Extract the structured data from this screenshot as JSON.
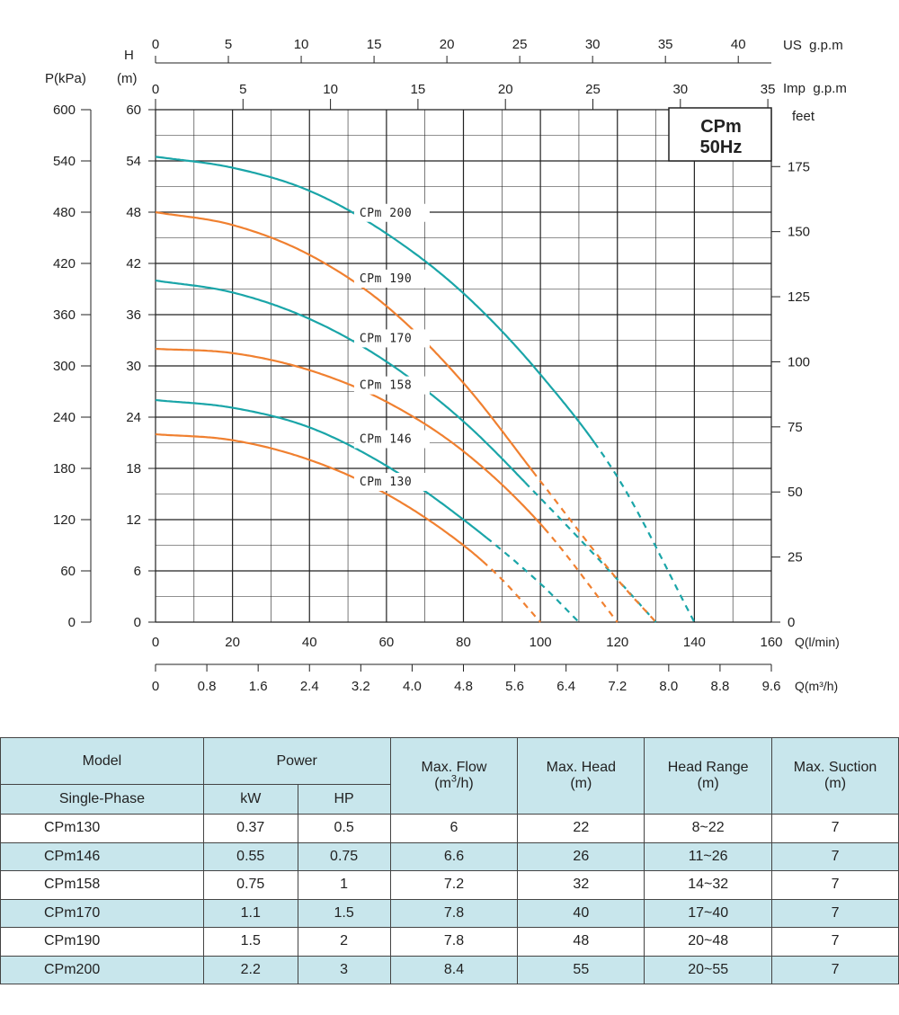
{
  "chart_data": {
    "type": "line",
    "title": "CPm",
    "subtitle": "50Hz",
    "x_axis": {
      "label": "Q(l/min)",
      "range": [
        0,
        160
      ],
      "ticks": [
        0,
        20,
        40,
        60,
        80,
        100,
        120,
        140,
        160
      ]
    },
    "x_axis_m3h": {
      "label": "Q(m³/h)",
      "range": [
        0,
        9.6
      ],
      "ticks": [
        "0",
        "0.8",
        "1.6",
        "2.4",
        "3.2",
        "4.0",
        "4.8",
        "5.6",
        "6.4",
        "7.2",
        "8.0",
        "8.8",
        "9.6"
      ]
    },
    "x_axis_us_gpm": {
      "label": "US  g.p.m",
      "range": [
        0,
        42.27
      ],
      "ticks": [
        0,
        5,
        10,
        15,
        20,
        25,
        30,
        35,
        40
      ]
    },
    "x_axis_imp_gpm": {
      "label": "Imp  g.p.m",
      "range": [
        0,
        35.2
      ],
      "ticks": [
        0,
        5,
        10,
        15,
        20,
        25,
        30,
        35
      ]
    },
    "y_axis_head": {
      "label_top": "H",
      "label_unit": "(m)",
      "range": [
        0,
        60
      ],
      "ticks": [
        0,
        6,
        12,
        18,
        24,
        30,
        36,
        42,
        48,
        54,
        60
      ]
    },
    "y_axis_pressure": {
      "label": "P(kPa)",
      "range": [
        0,
        600
      ],
      "ticks": [
        0,
        60,
        120,
        180,
        240,
        300,
        360,
        420,
        480,
        540,
        600
      ]
    },
    "y_axis_feet": {
      "label": "feet",
      "range": [
        0,
        196.85
      ],
      "ticks": [
        0,
        25,
        50,
        75,
        100,
        125,
        150,
        175
      ]
    },
    "grid": true,
    "series": [
      {
        "name": "CPm 130",
        "color": "#f08030",
        "x": [
          0,
          20,
          40,
          60,
          80,
          90,
          100
        ],
        "y": [
          22,
          21.3,
          19,
          15,
          9,
          5,
          0
        ],
        "dashed_from_x": 85,
        "label_x": 53,
        "label_y": 16
      },
      {
        "name": "CPm 146",
        "color": "#1aa5a8",
        "x": [
          0,
          20,
          40,
          60,
          80,
          100,
          110
        ],
        "y": [
          26,
          25.1,
          22.8,
          18.3,
          12,
          4.5,
          0
        ],
        "dashed_from_x": 86,
        "label_x": 53,
        "label_y": 21
      },
      {
        "name": "CPm 158",
        "color": "#f08030",
        "x": [
          0,
          20,
          40,
          60,
          80,
          100,
          120
        ],
        "y": [
          32,
          31.5,
          29.5,
          25.8,
          20,
          11.5,
          0
        ],
        "dashed_from_x": 101,
        "label_x": 53,
        "label_y": 27.3
      },
      {
        "name": "CPm 170",
        "color": "#1aa5a8",
        "x": [
          0,
          20,
          40,
          60,
          80,
          100,
          120,
          130
        ],
        "y": [
          40,
          38.6,
          35.5,
          30.5,
          23.5,
          14.5,
          5,
          0
        ],
        "dashed_from_x": 96,
        "label_x": 53,
        "label_y": 32.8
      },
      {
        "name": "CPm 190",
        "color": "#f08030",
        "x": [
          0,
          20,
          40,
          60,
          80,
          100,
          120,
          130
        ],
        "y": [
          48,
          46.5,
          43,
          37,
          28,
          16.5,
          5,
          0
        ],
        "dashed_from_x": 98,
        "label_x": 53,
        "label_y": 39.8
      },
      {
        "name": "CPm 200",
        "color": "#1aa5a8",
        "x": [
          0,
          20,
          40,
          60,
          80,
          100,
          120,
          140
        ],
        "y": [
          54.5,
          53.2,
          50.5,
          45.5,
          38.5,
          29,
          17,
          0
        ],
        "dashed_from_x": 114,
        "label_x": 53,
        "label_y": 47.5
      }
    ]
  },
  "table": {
    "headers": {
      "model": "Model",
      "power": "Power",
      "max_flow": "Max. Flow",
      "max_flow_unit_pre": "(m",
      "max_flow_unit_sup": "3",
      "max_flow_unit_post": "/h)",
      "max_head": "Max. Head",
      "max_head_unit": "(m)",
      "head_range": "Head Range",
      "head_range_unit": "(m)",
      "max_suction": "Max. Suction",
      "max_suction_unit": "(m)",
      "single_phase": "Single-Phase",
      "kw": "kW",
      "hp": "HP"
    },
    "rows": [
      {
        "model": "CPm130",
        "kw": "0.37",
        "hp": "0.5",
        "flow": "6",
        "head": "22",
        "range": "8~22",
        "suction": "7"
      },
      {
        "model": "CPm146",
        "kw": "0.55",
        "hp": "0.75",
        "flow": "6.6",
        "head": "26",
        "range": "11~26",
        "suction": "7"
      },
      {
        "model": "CPm158",
        "kw": "0.75",
        "hp": "1",
        "flow": "7.2",
        "head": "32",
        "range": "14~32",
        "suction": "7"
      },
      {
        "model": "CPm170",
        "kw": "1.1",
        "hp": "1.5",
        "flow": "7.8",
        "head": "40",
        "range": "17~40",
        "suction": "7"
      },
      {
        "model": "CPm190",
        "kw": "1.5",
        "hp": "2",
        "flow": "7.8",
        "head": "48",
        "range": "20~48",
        "suction": "7"
      },
      {
        "model": "CPm200",
        "kw": "2.2",
        "hp": "3",
        "flow": "8.4",
        "head": "55",
        "range": "20~55",
        "suction": "7"
      }
    ]
  },
  "colors": {
    "teal": "#1aa5a8",
    "orange": "#f08030",
    "table_shade": "#c8e6ec"
  }
}
